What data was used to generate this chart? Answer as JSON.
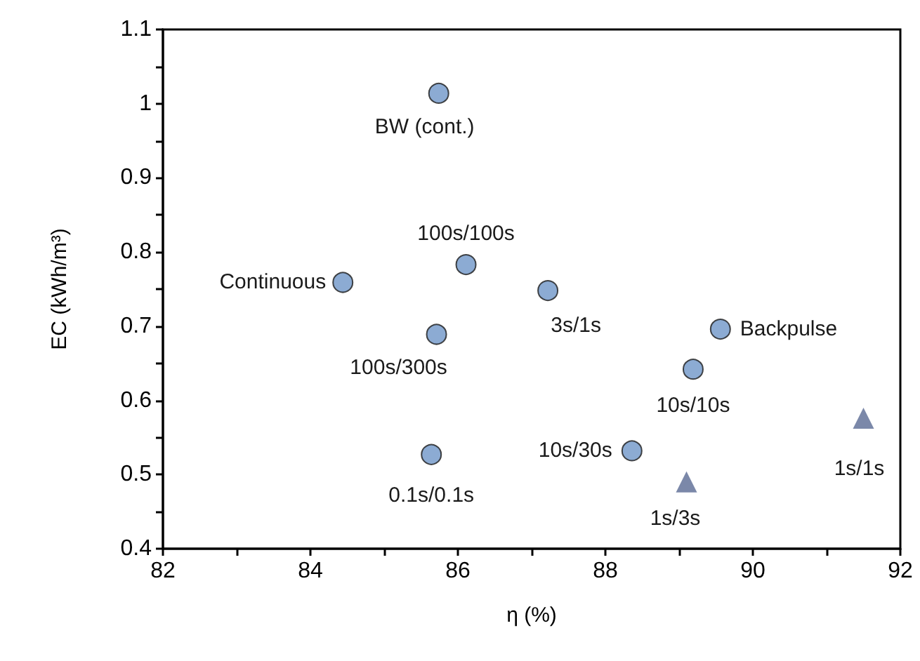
{
  "chart_data": {
    "type": "scatter",
    "xlabel": "η (%)",
    "ylabel": "EC (kWh/m³)",
    "xlim": [
      82,
      92
    ],
    "xticks": [
      82,
      {
        "value": 83,
        "label": null
      },
      84,
      {
        "value": 85,
        "label": null
      },
      86,
      {
        "value": 87,
        "label": null
      },
      88,
      {
        "value": 89,
        "label": null
      },
      90,
      {
        "value": 91,
        "label": null
      },
      92
    ],
    "ylim": [
      0.4,
      1.1
    ],
    "yticks": [
      0.4,
      {
        "value": 0.45,
        "label": null
      },
      0.5,
      {
        "value": 0.55,
        "label": null
      },
      0.6,
      {
        "value": 0.65,
        "label": null
      },
      0.7,
      {
        "value": 0.75,
        "label": null
      },
      0.8,
      {
        "value": 0.85,
        "label": null
      },
      0.9,
      {
        "value": 0.95,
        "label": null
      },
      1,
      {
        "value": 1.05,
        "label": null
      },
      1.1
    ],
    "grid": false,
    "series": [
      {
        "color": "#6f96c8",
        "marker": "circle",
        "x": [
          85.74,
          84.44,
          86.11,
          87.22,
          85.71,
          89.56,
          89.19,
          88.36,
          85.64
        ],
        "values": [
          1.014,
          0.759,
          0.783,
          0.748,
          0.689,
          0.696,
          0.642,
          0.532,
          0.527
        ]
      },
      {
        "color": "#5a6a94",
        "marker": "triangle",
        "x": [
          89.1,
          91.5
        ],
        "values": [
          0.49,
          0.576
        ]
      }
    ],
    "annotations": [
      {
        "text": "BW (cont.)",
        "x": 85.74,
        "y": 1.014
      },
      {
        "text": "Continuous",
        "x": 84.44,
        "y": 0.759
      },
      {
        "text": "100s/100s",
        "x": 86.11,
        "y": 0.783
      },
      {
        "text": "3s/1s",
        "x": 87.22,
        "y": 0.748
      },
      {
        "text": "100s/300s",
        "x": 85.71,
        "y": 0.689
      },
      {
        "text": "Backpulse",
        "x": 89.56,
        "y": 0.696
      },
      {
        "text": "10s/10s",
        "x": 89.19,
        "y": 0.642
      },
      {
        "text": "10s/30s",
        "x": 88.36,
        "y": 0.532
      },
      {
        "text": "0.1s/0.1s",
        "x": 85.64,
        "y": 0.527
      },
      {
        "text": "1s/3s",
        "x": 89.1,
        "y": 0.49
      },
      {
        "text": "1s/1s",
        "x": 91.5,
        "y": 0.576
      }
    ]
  }
}
